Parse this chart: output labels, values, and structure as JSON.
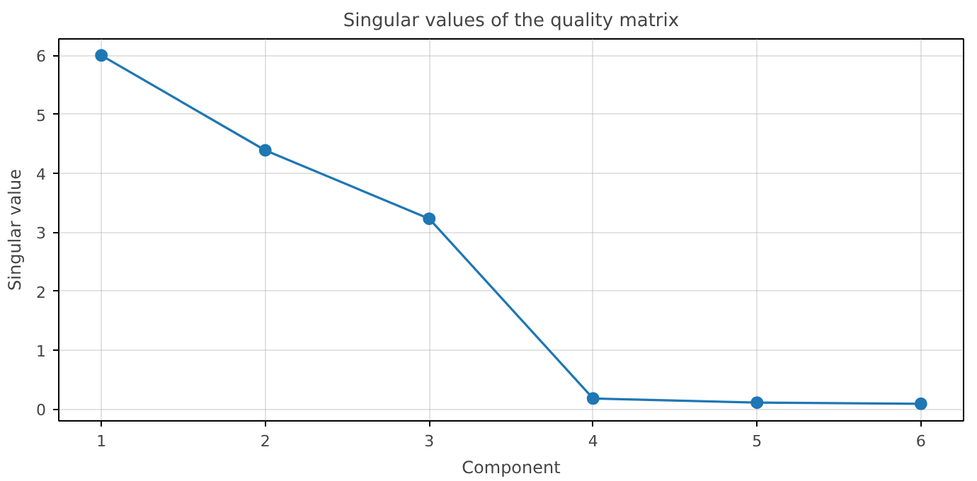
{
  "chart_data": {
    "type": "line",
    "title": "Singular values of the quality matrix",
    "xlabel": "Component",
    "ylabel": "Singular value",
    "x": [
      1,
      2,
      3,
      4,
      5,
      6
    ],
    "series": [
      {
        "color": "#1f77b4",
        "values": [
          6.0,
          4.39,
          3.23,
          0.18,
          0.11,
          0.09
        ]
      }
    ],
    "xlim": [
      0.74,
      6.26
    ],
    "ylim": [
      -0.2,
      6.28
    ],
    "xticks": [
      1,
      2,
      3,
      4,
      5,
      6
    ],
    "yticks": [
      0,
      1,
      2,
      3,
      4,
      5,
      6
    ],
    "grid": true,
    "marker": "circle",
    "line_style": "solid"
  }
}
